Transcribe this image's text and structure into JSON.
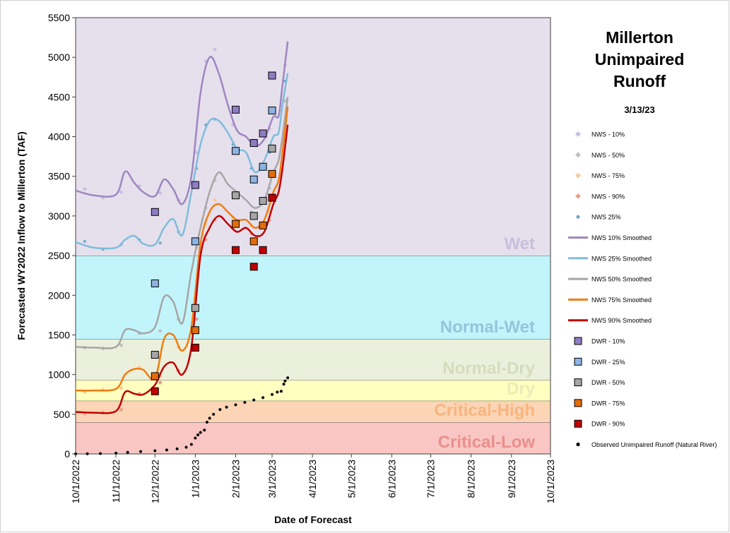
{
  "chart_data": {
    "type": "line",
    "title": "Millerton Unimpaired Runoff",
    "subtitle": "3/13/23",
    "y_label": "Forecasted WY2022 Inflow to Millerton (TAF)",
    "x_label": "Date of Forecast",
    "ylim": [
      0,
      5500
    ],
    "yticks": [
      0,
      500,
      1000,
      1500,
      2000,
      2500,
      3000,
      3500,
      4000,
      4500,
      5000,
      5500
    ],
    "xlim": [
      "2022-10-01",
      "2023-10-01"
    ],
    "xticks": [
      {
        "value": "2022-10-01",
        "label": "10/1/2022"
      },
      {
        "value": "2022-11-01",
        "label": "11/1/2022"
      },
      {
        "value": "2022-12-01",
        "label": "12/1/2022"
      },
      {
        "value": "2023-01-01",
        "label": "1/1/2023"
      },
      {
        "value": "2023-02-01",
        "label": "2/1/2023"
      },
      {
        "value": "2023-03-01",
        "label": "3/1/2023"
      },
      {
        "value": "2023-04-01",
        "label": "4/1/2023"
      },
      {
        "value": "2023-05-01",
        "label": "5/1/2023"
      },
      {
        "value": "2023-06-01",
        "label": "6/1/2023"
      },
      {
        "value": "2023-07-01",
        "label": "7/1/2023"
      },
      {
        "value": "2023-08-01",
        "label": "8/1/2023"
      },
      {
        "value": "2023-09-01",
        "label": "9/1/2023"
      },
      {
        "value": "2023-10-01",
        "label": "10/1/2023"
      }
    ],
    "bands": [
      {
        "name": "Critical-Low",
        "from": 0,
        "to": 400,
        "color": "#f9c6c4",
        "label_color": "#e8908c"
      },
      {
        "name": "Critical-High",
        "from": 400,
        "to": 670,
        "color": "#fbd5b5",
        "label_color": "#f7b580"
      },
      {
        "name": "Dry",
        "from": 670,
        "to": 930,
        "color": "#ffffc0",
        "label_color": "#ecebb8"
      },
      {
        "name": "Normal-Dry",
        "from": 930,
        "to": 1450,
        "color": "#ebf0dc",
        "label_color": "#d5dcbc"
      },
      {
        "name": "Normal-Wet",
        "from": 1450,
        "to": 2500,
        "color": "#c2f5fb",
        "label_color": "#93c6dc"
      },
      {
        "name": "Wet",
        "from": 2500,
        "to": 5500,
        "color": "#e6e0ed",
        "label_color": "#c9bfdd"
      }
    ],
    "series": [
      {
        "name": "NWS - 10%",
        "mode": "diamond",
        "color": "#cbbce0",
        "x": [
          "2022-10-08",
          "2022-10-22",
          "2022-11-05",
          "2022-11-19",
          "2022-12-05",
          "2022-12-19",
          "2023-01-02",
          "2023-01-09",
          "2023-01-16",
          "2023-01-30",
          "2023-02-13",
          "2023-02-27",
          "2023-03-11"
        ],
        "values": [
          3340,
          3230,
          3300,
          3380,
          3290,
          3200,
          3800,
          4950,
          5100,
          4150,
          3900,
          4100,
          4900
        ]
      },
      {
        "name": "NWS - 50%",
        "mode": "diamond",
        "color": "#bfbfbf",
        "x": [
          "2022-10-08",
          "2022-10-22",
          "2022-11-05",
          "2022-11-19",
          "2022-12-05",
          "2022-12-19",
          "2023-01-02",
          "2023-01-09",
          "2023-01-16",
          "2023-01-30",
          "2023-02-13",
          "2023-02-27",
          "2023-03-11"
        ],
        "values": [
          1340,
          1330,
          1370,
          1520,
          1550,
          1700,
          2600,
          3100,
          3450,
          3280,
          3050,
          3350,
          4450
        ]
      },
      {
        "name": "NWS - 75%",
        "mode": "diamond",
        "color": "#fcc896",
        "x": [
          "2022-10-08",
          "2022-10-22",
          "2022-11-05",
          "2022-11-19",
          "2022-12-05",
          "2022-12-19",
          "2023-01-02",
          "2023-01-09",
          "2023-01-16",
          "2023-01-30",
          "2023-02-13",
          "2023-02-27",
          "2023-03-11"
        ],
        "values": [
          780,
          810,
          830,
          1090,
          980,
          1350,
          2000,
          2900,
          3200,
          2980,
          2880,
          3050,
          4200
        ]
      },
      {
        "name": "NWS - 90%",
        "mode": "diamond",
        "color": "#e4a08a",
        "x": [
          "2022-10-08",
          "2022-10-22",
          "2022-11-05",
          "2022-11-19",
          "2022-12-05",
          "2022-12-19",
          "2023-01-02",
          "2023-01-09",
          "2023-01-16",
          "2023-01-30",
          "2023-02-13",
          "2023-02-27",
          "2023-03-11"
        ],
        "values": [
          510,
          520,
          560,
          760,
          900,
          1050,
          1700,
          2700,
          2950,
          2850,
          2780,
          2950,
          3950
        ]
      },
      {
        "name": "NWS 25%",
        "mode": "dot",
        "color": "#6fa8d0",
        "x": [
          "2022-10-08",
          "2022-10-22",
          "2022-11-05",
          "2022-11-19",
          "2022-12-05",
          "2022-12-19",
          "2023-01-02",
          "2023-01-09",
          "2023-01-16",
          "2023-01-30",
          "2023-02-13",
          "2023-02-27",
          "2023-03-11"
        ],
        "values": [
          2680,
          2580,
          2640,
          2700,
          2660,
          2800,
          3600,
          4150,
          4220,
          3900,
          3600,
          3800,
          4700
        ]
      },
      {
        "name": "NWS 10% Smoothed",
        "mode": "line",
        "color": "#9f86c0",
        "x": [
          "2022-10-01",
          "2022-10-15",
          "2022-11-01",
          "2022-11-08",
          "2022-11-15",
          "2022-11-22",
          "2022-12-01",
          "2022-12-08",
          "2022-12-15",
          "2022-12-22",
          "2022-12-29",
          "2023-01-05",
          "2023-01-12",
          "2023-01-19",
          "2023-01-26",
          "2023-02-02",
          "2023-02-09",
          "2023-02-16",
          "2023-02-23",
          "2023-03-02",
          "2023-03-06",
          "2023-03-09",
          "2023-03-13"
        ],
        "values": [
          3320,
          3260,
          3270,
          3560,
          3420,
          3300,
          3250,
          3460,
          3340,
          3150,
          3500,
          4550,
          5000,
          4800,
          4400,
          4080,
          4000,
          3880,
          3970,
          4250,
          4260,
          4650,
          5200
        ]
      },
      {
        "name": "NWS 25% Smoothed",
        "mode": "line",
        "color": "#80bcdc",
        "x": [
          "2022-10-01",
          "2022-10-15",
          "2022-11-01",
          "2022-11-08",
          "2022-11-15",
          "2022-11-22",
          "2022-12-01",
          "2022-12-08",
          "2022-12-15",
          "2022-12-22",
          "2022-12-29",
          "2023-01-05",
          "2023-01-12",
          "2023-01-19",
          "2023-01-26",
          "2023-02-02",
          "2023-02-09",
          "2023-02-16",
          "2023-02-23",
          "2023-03-02",
          "2023-03-06",
          "2023-03-09",
          "2023-03-13"
        ],
        "values": [
          2670,
          2600,
          2600,
          2700,
          2750,
          2650,
          2640,
          2850,
          2960,
          2760,
          3300,
          3900,
          4200,
          4200,
          4050,
          3850,
          3800,
          3550,
          3700,
          4000,
          4050,
          4400,
          4800
        ]
      },
      {
        "name": "NWS 50% Smoothed",
        "mode": "line",
        "color": "#a6a6a6",
        "x": [
          "2022-10-01",
          "2022-10-15",
          "2022-11-01",
          "2022-11-08",
          "2022-11-15",
          "2022-11-22",
          "2022-12-01",
          "2022-12-08",
          "2022-12-15",
          "2022-12-22",
          "2022-12-29",
          "2023-01-05",
          "2023-01-12",
          "2023-01-19",
          "2023-01-26",
          "2023-02-02",
          "2023-02-09",
          "2023-02-16",
          "2023-02-23",
          "2023-03-02",
          "2023-03-06",
          "2023-03-09",
          "2023-03-13"
        ],
        "values": [
          1350,
          1340,
          1350,
          1560,
          1560,
          1520,
          1600,
          1980,
          1920,
          1650,
          2300,
          2850,
          3300,
          3550,
          3400,
          3300,
          3200,
          3100,
          3200,
          3550,
          3700,
          4000,
          4500
        ]
      },
      {
        "name": "NWS 75% Smoothed",
        "mode": "line",
        "color": "#f07c10",
        "x": [
          "2022-10-01",
          "2022-10-15",
          "2022-11-01",
          "2022-11-08",
          "2022-11-15",
          "2022-11-22",
          "2022-12-01",
          "2022-12-08",
          "2022-12-15",
          "2022-12-22",
          "2022-12-29",
          "2023-01-05",
          "2023-01-12",
          "2023-01-19",
          "2023-01-26",
          "2023-02-02",
          "2023-02-09",
          "2023-02-16",
          "2023-02-23",
          "2023-03-02",
          "2023-03-06",
          "2023-03-09",
          "2023-03-13"
        ],
        "values": [
          800,
          800,
          820,
          1000,
          1070,
          1060,
          950,
          1450,
          1500,
          1300,
          1600,
          2650,
          3050,
          3150,
          3050,
          2950,
          2950,
          2850,
          2950,
          3300,
          3450,
          3800,
          4380
        ]
      },
      {
        "name": "NWS 90% Smoothed",
        "mode": "line",
        "color": "#c00000",
        "x": [
          "2022-10-01",
          "2022-10-15",
          "2022-11-01",
          "2022-11-08",
          "2022-11-15",
          "2022-11-22",
          "2022-12-01",
          "2022-12-08",
          "2022-12-15",
          "2022-12-22",
          "2022-12-29",
          "2023-01-05",
          "2023-01-12",
          "2023-01-19",
          "2023-01-26",
          "2023-02-02",
          "2023-02-09",
          "2023-02-16",
          "2023-02-23",
          "2023-03-02",
          "2023-03-06",
          "2023-03-09",
          "2023-03-13"
        ],
        "values": [
          530,
          520,
          540,
          780,
          760,
          750,
          870,
          1100,
          1150,
          1000,
          1350,
          2500,
          2850,
          3000,
          2900,
          2800,
          2850,
          2750,
          2800,
          3150,
          3300,
          3600,
          4150
        ]
      },
      {
        "name": "DWR - 10%",
        "mode": "square",
        "color": "#8e7cc3",
        "x": [
          "2022-12-01",
          "2023-01-01",
          "2023-02-01",
          "2023-02-15",
          "2023-02-22",
          "2023-03-01"
        ],
        "values": [
          3050,
          3390,
          4340,
          3920,
          4040,
          4770
        ]
      },
      {
        "name": "DWR - 25%",
        "mode": "square",
        "color": "#8db4e2",
        "x": [
          "2022-12-01",
          "2023-01-01",
          "2023-02-01",
          "2023-02-15",
          "2023-02-22",
          "2023-03-01"
        ],
        "values": [
          2150,
          2680,
          3820,
          3460,
          3620,
          4330
        ]
      },
      {
        "name": "DWR - 50%",
        "mode": "square",
        "color": "#a6a6a6",
        "x": [
          "2022-12-01",
          "2023-01-01",
          "2023-02-01",
          "2023-02-15",
          "2023-02-22",
          "2023-03-01"
        ],
        "values": [
          1250,
          1840,
          3260,
          3000,
          3190,
          3850
        ]
      },
      {
        "name": "DWR - 75%",
        "mode": "square",
        "color": "#e46c0a",
        "x": [
          "2022-12-01",
          "2023-01-01",
          "2023-02-01",
          "2023-02-15",
          "2023-02-22",
          "2023-03-01"
        ],
        "values": [
          980,
          1560,
          2900,
          2680,
          2880,
          3530
        ]
      },
      {
        "name": "DWR - 90%",
        "mode": "square",
        "color": "#c00000",
        "x": [
          "2022-12-01",
          "2023-01-01",
          "2023-02-01",
          "2023-02-15",
          "2023-02-22",
          "2023-03-01"
        ],
        "values": [
          790,
          1340,
          2570,
          2360,
          2570,
          3230
        ]
      },
      {
        "name": "Observed Unimpaired Runoff (Natural River)",
        "mode": "dot",
        "color": "#000000",
        "x": [
          "2022-10-01",
          "2022-10-10",
          "2022-10-20",
          "2022-11-01",
          "2022-11-10",
          "2022-11-20",
          "2022-12-01",
          "2022-12-10",
          "2022-12-18",
          "2022-12-25",
          "2022-12-29",
          "2023-01-01",
          "2023-01-03",
          "2023-01-05",
          "2023-01-08",
          "2023-01-10",
          "2023-01-12",
          "2023-01-15",
          "2023-01-20",
          "2023-01-25",
          "2023-02-01",
          "2023-02-08",
          "2023-02-15",
          "2023-02-22",
          "2023-03-01",
          "2023-03-05",
          "2023-03-08",
          "2023-03-10",
          "2023-03-11",
          "2023-03-13"
        ],
        "values": [
          0,
          2,
          5,
          10,
          20,
          30,
          40,
          50,
          65,
          85,
          120,
          200,
          240,
          270,
          300,
          400,
          450,
          500,
          560,
          590,
          620,
          650,
          680,
          710,
          750,
          780,
          790,
          880,
          920,
          960
        ]
      }
    ]
  }
}
